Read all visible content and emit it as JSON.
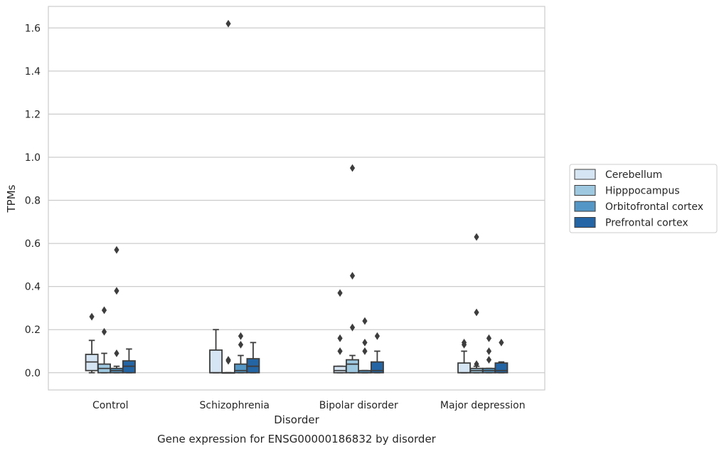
{
  "caption": "Gene expression for ENSG00000186832 by disorder",
  "chart_data": {
    "type": "box",
    "title": "",
    "xlabel": "Disorder",
    "ylabel": "TPMs",
    "ylim": [
      -0.08,
      1.7
    ],
    "yticks": [
      0.0,
      0.2,
      0.4,
      0.6,
      0.8,
      1.0,
      1.2,
      1.4,
      1.6
    ],
    "ytick_labels": [
      "0.0",
      "0.2",
      "0.4",
      "0.6",
      "0.8",
      "1.0",
      "1.2",
      "1.4",
      "1.6"
    ],
    "grid": "horizontal",
    "legend_position": "right",
    "categories": [
      "Control",
      "Schizophrenia",
      "Bipolar disorder",
      "Major depression"
    ],
    "series": [
      {
        "name": "Cerebellum",
        "color": "#d6e5f3",
        "boxes": [
          {
            "whislo": 0.0,
            "q1": 0.01,
            "med": 0.05,
            "q3": 0.085,
            "whishi": 0.15,
            "fliers": [
              0.26
            ]
          },
          {
            "whislo": 0.0,
            "q1": 0.0,
            "med": 0.0,
            "q3": 0.105,
            "whishi": 0.2,
            "fliers": []
          },
          {
            "whislo": 0.0,
            "q1": 0.0,
            "med": 0.01,
            "q3": 0.03,
            "whishi": 0.03,
            "fliers": [
              0.1,
              0.16,
              0.37
            ]
          },
          {
            "whislo": 0.0,
            "q1": 0.0,
            "med": 0.0,
            "q3": 0.045,
            "whishi": 0.1,
            "fliers": [
              0.13,
              0.14
            ]
          }
        ]
      },
      {
        "name": "Hipppocampus",
        "color": "#9ec8e0",
        "boxes": [
          {
            "whislo": 0.0,
            "q1": 0.0,
            "med": 0.02,
            "q3": 0.04,
            "whishi": 0.09,
            "fliers": [
              0.19,
              0.29
            ]
          },
          {
            "whislo": 0.0,
            "q1": 0.0,
            "med": 0.0,
            "q3": 0.0,
            "whishi": 0.0,
            "fliers": [
              0.055,
              0.06,
              1.62
            ]
          },
          {
            "whislo": 0.0,
            "q1": 0.0,
            "med": 0.04,
            "q3": 0.06,
            "whishi": 0.08,
            "fliers": [
              0.21,
              0.45,
              0.95
            ]
          },
          {
            "whislo": 0.0,
            "q1": 0.0,
            "med": 0.01,
            "q3": 0.02,
            "whishi": 0.03,
            "fliers": [
              0.04,
              0.28,
              0.63
            ]
          }
        ]
      },
      {
        "name": "Orbitofrontal cortex",
        "color": "#5497c6",
        "boxes": [
          {
            "whislo": 0.0,
            "q1": 0.0,
            "med": 0.01,
            "q3": 0.02,
            "whishi": 0.03,
            "fliers": [
              0.09,
              0.38,
              0.57
            ]
          },
          {
            "whislo": 0.0,
            "q1": 0.0,
            "med": 0.01,
            "q3": 0.04,
            "whishi": 0.08,
            "fliers": [
              0.13,
              0.17
            ]
          },
          {
            "whislo": 0.0,
            "q1": 0.0,
            "med": 0.0,
            "q3": 0.01,
            "whishi": 0.01,
            "fliers": [
              0.1,
              0.14,
              0.24
            ]
          },
          {
            "whislo": 0.0,
            "q1": 0.0,
            "med": 0.01,
            "q3": 0.02,
            "whishi": 0.02,
            "fliers": [
              0.06,
              0.1,
              0.16
            ]
          }
        ]
      },
      {
        "name": "Prefrontal cortex",
        "color": "#2465a5",
        "boxes": [
          {
            "whislo": 0.0,
            "q1": 0.0,
            "med": 0.03,
            "q3": 0.055,
            "whishi": 0.11,
            "fliers": []
          },
          {
            "whislo": 0.0,
            "q1": 0.0,
            "med": 0.03,
            "q3": 0.065,
            "whishi": 0.14,
            "fliers": []
          },
          {
            "whislo": 0.0,
            "q1": 0.0,
            "med": 0.01,
            "q3": 0.05,
            "whishi": 0.1,
            "fliers": [
              0.17
            ]
          },
          {
            "whislo": 0.0,
            "q1": 0.0,
            "med": 0.01,
            "q3": 0.045,
            "whishi": 0.05,
            "fliers": [
              0.14
            ]
          }
        ]
      }
    ]
  }
}
